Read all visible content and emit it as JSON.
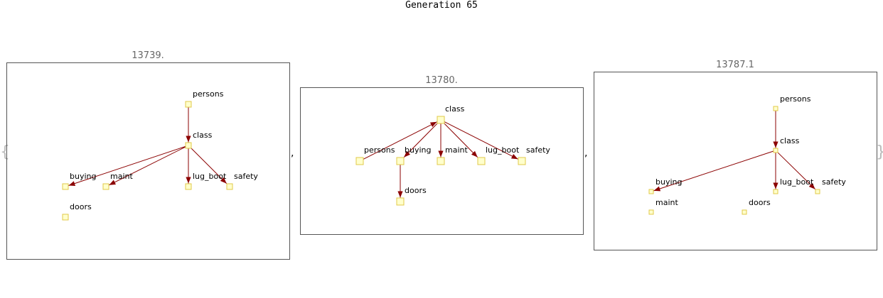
{
  "title": "Generation 65",
  "punctuation": {
    "open": "{",
    "close": "}",
    "sep": ","
  },
  "colors": {
    "edge": "#8b0000",
    "node_fill": "#ffffcc",
    "node_stroke": "#e0c84a",
    "frame": "#555555",
    "score": "#666666"
  },
  "panels": [
    {
      "score": "13739.",
      "nodes": [
        {
          "id": "persons",
          "label": "persons"
        },
        {
          "id": "class",
          "label": "class"
        },
        {
          "id": "buying",
          "label": "buying"
        },
        {
          "id": "maint",
          "label": "maint"
        },
        {
          "id": "lug_boot",
          "label": "lug_boot"
        },
        {
          "id": "safety",
          "label": "safety"
        },
        {
          "id": "doors",
          "label": "doors"
        }
      ],
      "edges": [
        {
          "from": "persons",
          "to": "class"
        },
        {
          "from": "class",
          "to": "buying"
        },
        {
          "from": "class",
          "to": "maint"
        },
        {
          "from": "class",
          "to": "lug_boot"
        },
        {
          "from": "class",
          "to": "safety"
        }
      ]
    },
    {
      "score": "13780.",
      "nodes": [
        {
          "id": "class",
          "label": "class"
        },
        {
          "id": "persons",
          "label": "persons"
        },
        {
          "id": "buying",
          "label": "buying"
        },
        {
          "id": "maint",
          "label": "maint"
        },
        {
          "id": "lug_boot",
          "label": "lug_boot"
        },
        {
          "id": "safety",
          "label": "safety"
        },
        {
          "id": "doors",
          "label": "doors"
        }
      ],
      "edges": [
        {
          "from": "persons",
          "to": "class"
        },
        {
          "from": "class",
          "to": "buying"
        },
        {
          "from": "class",
          "to": "maint"
        },
        {
          "from": "class",
          "to": "lug_boot"
        },
        {
          "from": "class",
          "to": "safety"
        },
        {
          "from": "buying",
          "to": "doors"
        }
      ]
    },
    {
      "score": "13787.1",
      "nodes": [
        {
          "id": "persons",
          "label": "persons"
        },
        {
          "id": "class",
          "label": "class"
        },
        {
          "id": "buying",
          "label": "buying"
        },
        {
          "id": "lug_boot",
          "label": "lug_boot"
        },
        {
          "id": "safety",
          "label": "safety"
        },
        {
          "id": "maint",
          "label": "maint"
        },
        {
          "id": "doors",
          "label": "doors"
        }
      ],
      "edges": [
        {
          "from": "persons",
          "to": "class"
        },
        {
          "from": "class",
          "to": "buying"
        },
        {
          "from": "class",
          "to": "lug_boot"
        },
        {
          "from": "class",
          "to": "safety"
        }
      ]
    }
  ]
}
